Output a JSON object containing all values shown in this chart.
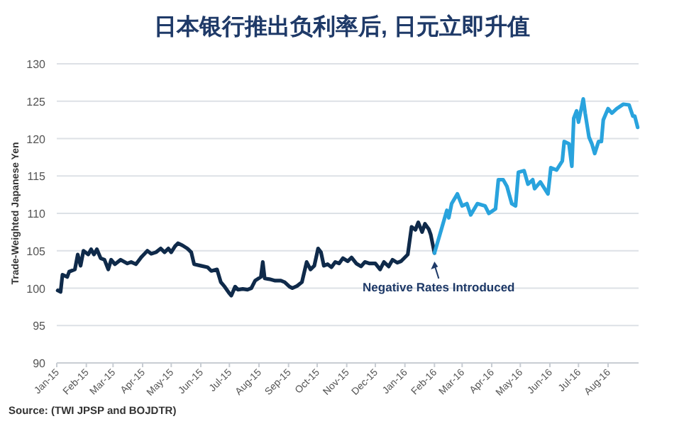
{
  "chart_data": {
    "type": "line",
    "title": "日本银行推出负利率后, 日元立即升值",
    "ylabel": "Trade-Weighted Japanese Yen",
    "annotations": [
      {
        "text": "Negative Rates Introduced",
        "x": "2016-02-01",
        "y": 104.7
      },
      "Source: (TWI JPSP and BOJDTR)"
    ],
    "xlim": [
      "2015-01-01",
      "2016-09-02"
    ],
    "xticks": [
      {
        "value": "2015-01-01",
        "label": "Jan-15"
      },
      {
        "value": "2015-02-01",
        "label": "Feb-15"
      },
      {
        "value": "2015-03-01",
        "label": "Mar-15"
      },
      {
        "value": "2015-04-01",
        "label": "Apr-15"
      },
      {
        "value": "2015-05-01",
        "label": "May-15"
      },
      {
        "value": "2015-06-01",
        "label": "Jun-15"
      },
      {
        "value": "2015-07-01",
        "label": "Jul-15"
      },
      {
        "value": "2015-08-01",
        "label": "Aug-15"
      },
      {
        "value": "2015-09-01",
        "label": "Sep-15"
      },
      {
        "value": "2015-10-01",
        "label": "Oct-15"
      },
      {
        "value": "2015-11-01",
        "label": "Nov-15"
      },
      {
        "value": "2015-12-01",
        "label": "Dec-15"
      },
      {
        "value": "2016-01-01",
        "label": "Jan-16"
      },
      {
        "value": "2016-02-01",
        "label": "Feb-16"
      },
      {
        "value": "2016-03-01",
        "label": "Mar-16"
      },
      {
        "value": "2016-04-01",
        "label": "Apr-16"
      },
      {
        "value": "2016-05-01",
        "label": "May-16"
      },
      {
        "value": "2016-06-01",
        "label": "Jun-16"
      },
      {
        "value": "2016-07-01",
        "label": "Jul-16"
      },
      {
        "value": "2016-08-01",
        "label": "Aug-16"
      }
    ],
    "ylim": [
      90,
      130
    ],
    "yticks": [
      90,
      95,
      100,
      105,
      110,
      115,
      120,
      125,
      130
    ],
    "grid": "y",
    "line_style": "solid",
    "series": [
      {
        "color": "#0f2a4a",
        "x": [
          "2015-01-02",
          "2015-01-05",
          "2015-01-07",
          "2015-01-12",
          "2015-01-14",
          "2015-01-20",
          "2015-01-23",
          "2015-01-26",
          "2015-01-29",
          "2015-02-03",
          "2015-02-06",
          "2015-02-09",
          "2015-02-12",
          "2015-02-16",
          "2015-02-20",
          "2015-02-24",
          "2015-02-27",
          "2015-03-03",
          "2015-03-09",
          "2015-03-16",
          "2015-03-20",
          "2015-03-25",
          "2015-03-31",
          "2015-04-06",
          "2015-04-10",
          "2015-04-15",
          "2015-04-20",
          "2015-04-24",
          "2015-04-28",
          "2015-05-01",
          "2015-05-05",
          "2015-05-08",
          "2015-05-13",
          "2015-05-18",
          "2015-05-22",
          "2015-05-25",
          "2015-06-01",
          "2015-06-08",
          "2015-06-12",
          "2015-06-18",
          "2015-06-22",
          "2015-06-26",
          "2015-07-01",
          "2015-07-03",
          "2015-07-07",
          "2015-07-10",
          "2015-07-15",
          "2015-07-20",
          "2015-07-24",
          "2015-07-28",
          "2015-08-03",
          "2015-08-05",
          "2015-08-07",
          "2015-08-12",
          "2015-08-18",
          "2015-08-24",
          "2015-08-28",
          "2015-09-02",
          "2015-09-05",
          "2015-09-10",
          "2015-09-15",
          "2015-09-20",
          "2015-09-24",
          "2015-09-28",
          "2015-10-02",
          "2015-10-05",
          "2015-10-08",
          "2015-10-12",
          "2015-10-16",
          "2015-10-20",
          "2015-10-24",
          "2015-10-28",
          "2015-11-02",
          "2015-11-06",
          "2015-11-11",
          "2015-11-16",
          "2015-11-20",
          "2015-11-25",
          "2015-12-01",
          "2015-12-06",
          "2015-12-10",
          "2015-12-15",
          "2015-12-19",
          "2015-12-24",
          "2015-12-28",
          "2016-01-04",
          "2016-01-08",
          "2016-01-12",
          "2016-01-15",
          "2016-01-19",
          "2016-01-22",
          "2016-01-26",
          "2016-01-28",
          "2016-02-01"
        ],
        "values": [
          99.7,
          99.5,
          101.8,
          101.5,
          102.2,
          102.5,
          104.5,
          103,
          105,
          104.5,
          105.2,
          104.5,
          105.2,
          104,
          103.8,
          102.5,
          103.8,
          103.2,
          103.8,
          103.3,
          103.5,
          103.2,
          104.2,
          105,
          104.6,
          104.8,
          105.3,
          104.8,
          105.3,
          104.8,
          105.6,
          106,
          105.7,
          105.3,
          104.8,
          103.2,
          103,
          102.8,
          102.3,
          102.5,
          100.8,
          100.2,
          99.3,
          99,
          100.2,
          99.8,
          99.9,
          99.8,
          100,
          101,
          101.5,
          103.5,
          101.3,
          101.2,
          101,
          101,
          100.8,
          100.2,
          100,
          100.3,
          100.8,
          103.5,
          102.5,
          103,
          105.3,
          104.8,
          103,
          103.2,
          102.8,
          103.5,
          103.3,
          104,
          103.6,
          104.1,
          103.3,
          102.9,
          103.5,
          103.3,
          103.3,
          102.5,
          103.5,
          102.9,
          103.8,
          103.4,
          103.6,
          104.5,
          108.2,
          107.8,
          108.8,
          107.5,
          108.6,
          107.9,
          107.2,
          104.7
        ]
      },
      {
        "color": "#29a3dd",
        "x": [
          "2016-02-01",
          "2016-02-09",
          "2016-02-14",
          "2016-02-16",
          "2016-02-19",
          "2016-02-25",
          "2016-03-01",
          "2016-03-06",
          "2016-03-10",
          "2016-03-17",
          "2016-03-25",
          "2016-03-29",
          "2016-04-05",
          "2016-04-08",
          "2016-04-13",
          "2016-04-17",
          "2016-04-22",
          "2016-04-26",
          "2016-04-29",
          "2016-05-05",
          "2016-05-09",
          "2016-05-14",
          "2016-05-16",
          "2016-05-22",
          "2016-05-30",
          "2016-06-02",
          "2016-06-08",
          "2016-06-14",
          "2016-06-16",
          "2016-06-21",
          "2016-06-24",
          "2016-06-26",
          "2016-06-29",
          "2016-07-01",
          "2016-07-06",
          "2016-07-08",
          "2016-07-12",
          "2016-07-15",
          "2016-07-18",
          "2016-07-22",
          "2016-07-25",
          "2016-07-27",
          "2016-08-01",
          "2016-08-05",
          "2016-08-10",
          "2016-08-17",
          "2016-08-23",
          "2016-08-27",
          "2016-08-29",
          "2016-09-01"
        ],
        "values": [
          104.7,
          108.2,
          110.4,
          109.4,
          111.3,
          112.6,
          111,
          111.3,
          109.8,
          111.3,
          111,
          110,
          110.6,
          114.5,
          114.5,
          113.6,
          111.3,
          111,
          115.5,
          115.7,
          113.9,
          114.5,
          113.3,
          114.2,
          112.6,
          116.1,
          115.8,
          117,
          119.6,
          119.3,
          116.3,
          122.7,
          123.7,
          122.2,
          125.3,
          123.4,
          120.2,
          119.3,
          118,
          119.6,
          119.6,
          122.5,
          124,
          123.4,
          124,
          124.6,
          124.5,
          123,
          123,
          121.5
        ]
      }
    ]
  }
}
